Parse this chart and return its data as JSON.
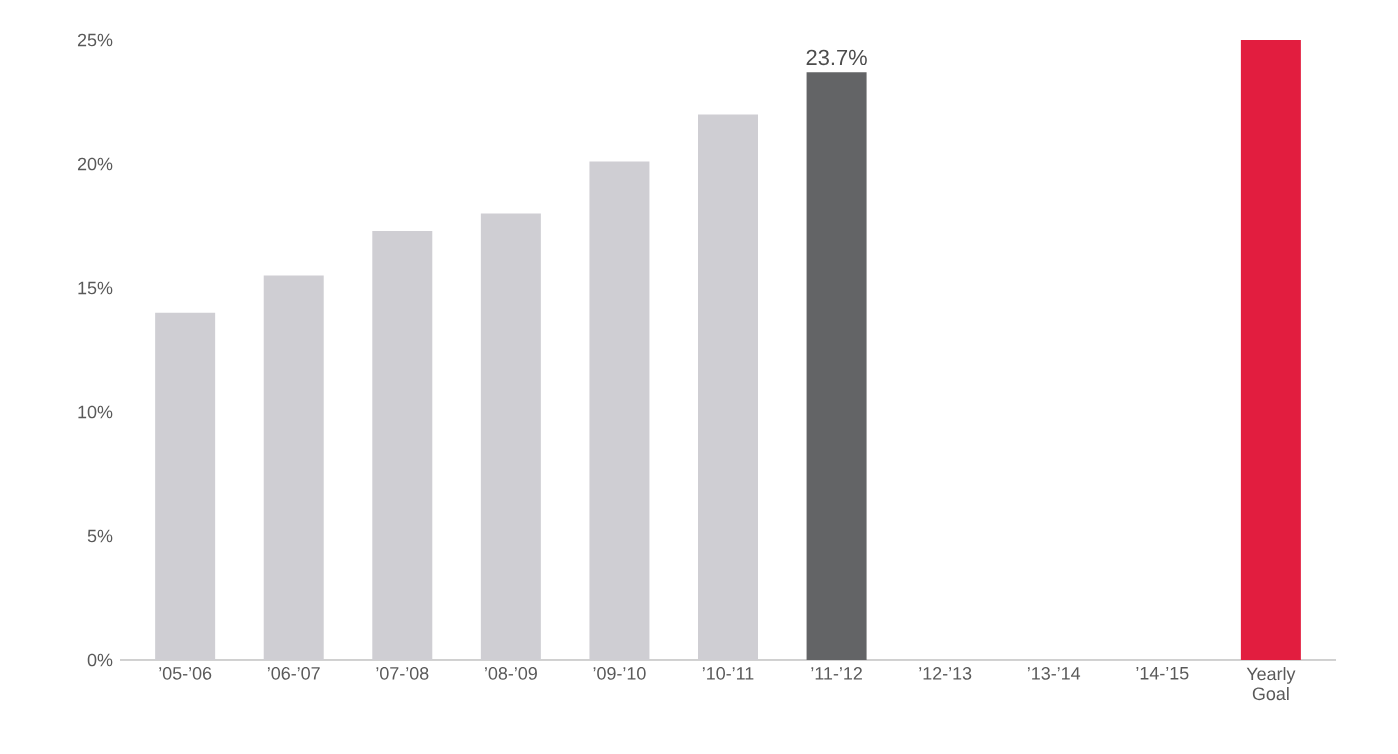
{
  "chart_data": {
    "type": "bar",
    "categories": [
      "’05-’06",
      "’06-’07",
      "’07-’08",
      "’08-’09",
      "’09-’10",
      "’10-’11",
      "’11-’12",
      "’12-’13",
      "’13-’14",
      "’14-’15",
      "Yearly Goal"
    ],
    "values": [
      14.0,
      15.5,
      17.3,
      18.0,
      20.1,
      22.0,
      23.7,
      null,
      null,
      null,
      25
    ],
    "colors": [
      "#cfced3",
      "#cfced3",
      "#cfced3",
      "#cfced3",
      "#cfced3",
      "#cfced3",
      "#636466",
      null,
      null,
      null,
      "#e21d3f"
    ],
    "value_labels": [
      null,
      null,
      null,
      null,
      null,
      null,
      "23.7%",
      null,
      null,
      null,
      null
    ],
    "ylim": [
      0,
      25
    ],
    "yticks": [
      {
        "value": 0,
        "label": "0%"
      },
      {
        "value": 5,
        "label": "5%"
      },
      {
        "value": 10,
        "label": "10%"
      },
      {
        "value": 15,
        "label": "15%"
      },
      {
        "value": 20,
        "label": "20%"
      },
      {
        "value": 25,
        "label": "25%"
      }
    ]
  }
}
